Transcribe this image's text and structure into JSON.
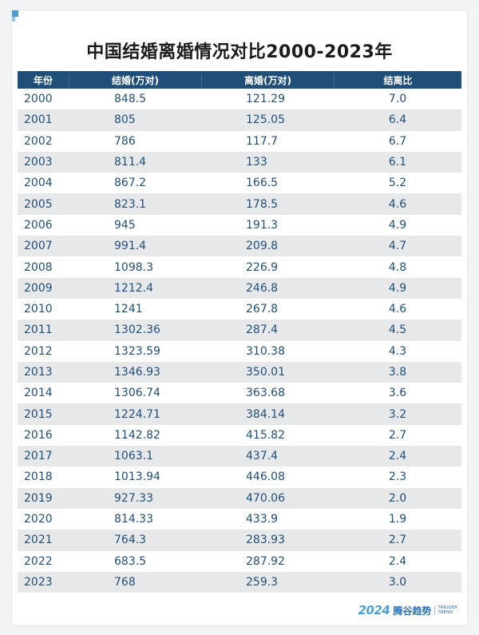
{
  "title": "中国结婚离婚情况对比2000-2023年",
  "colors": {
    "header_bg": "#1f4e79",
    "text": "#1f4e79",
    "stripe": "#e7e8ea",
    "accent": "#4a9fd8"
  },
  "corner_icon": "corner-bracket-icon",
  "chart_data": {
    "type": "table",
    "title": "中国结婚离婚情况对比2000-2023年",
    "columns": [
      "年份",
      "结婚(万对)",
      "离婚(万对)",
      "结离比"
    ],
    "rows": [
      [
        "2000",
        "848.5",
        "121.29",
        "7.0"
      ],
      [
        "2001",
        "805",
        "125.05",
        "6.4"
      ],
      [
        "2002",
        "786",
        "117.7",
        "6.7"
      ],
      [
        "2003",
        "811.4",
        "133",
        "6.1"
      ],
      [
        "2004",
        "867.2",
        "166.5",
        "5.2"
      ],
      [
        "2005",
        "823.1",
        "178.5",
        "4.6"
      ],
      [
        "2006",
        "945",
        "191.3",
        "4.9"
      ],
      [
        "2007",
        "991.4",
        "209.8",
        "4.7"
      ],
      [
        "2008",
        "1098.3",
        "226.9",
        "4.8"
      ],
      [
        "2009",
        "1212.4",
        "246.8",
        "4.9"
      ],
      [
        "2010",
        "1241",
        "267.8",
        "4.6"
      ],
      [
        "2011",
        "1302.36",
        "287.4",
        "4.5"
      ],
      [
        "2012",
        "1323.59",
        "310.38",
        "4.3"
      ],
      [
        "2013",
        "1346.93",
        "350.01",
        "3.8"
      ],
      [
        "2014",
        "1306.74",
        "363.68",
        "3.6"
      ],
      [
        "2015",
        "1224.71",
        "384.14",
        "3.2"
      ],
      [
        "2016",
        "1142.82",
        "415.82",
        "2.7"
      ],
      [
        "2017",
        "1063.1",
        "437.4",
        "2.4"
      ],
      [
        "2018",
        "1013.94",
        "446.08",
        "2.3"
      ],
      [
        "2019",
        "927.33",
        "470.06",
        "2.0"
      ],
      [
        "2020",
        "814.33",
        "433.9",
        "1.9"
      ],
      [
        "2021",
        "764.3",
        "283.93",
        "2.7"
      ],
      [
        "2022",
        "683.5",
        "287.92",
        "2.4"
      ],
      [
        "2023",
        "768",
        "259.3",
        "3.0"
      ]
    ]
  },
  "logo": {
    "icon": "brand-logo-icon",
    "number": "2024",
    "name_cn": "腾谷趋势",
    "name_en_1": "TRIGGER",
    "name_en_2": "TREND"
  }
}
